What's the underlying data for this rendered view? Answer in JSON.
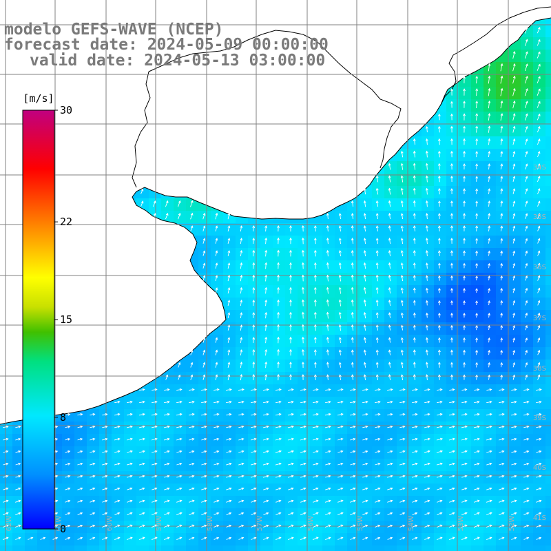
{
  "header": {
    "model": "modelo GEFS-WAVE (NCEP)",
    "forecast_date": "forecast date: 2024-05-09 00:00:00",
    "valid_date": "valid date: 2024-05-13 03:00:00"
  },
  "colorbar": {
    "unit": "[m/s]",
    "ticks": [
      "30",
      "22",
      "15",
      "8",
      "0"
    ],
    "tick_values": [
      30,
      22,
      15,
      8,
      0
    ],
    "range": [
      0,
      30
    ]
  },
  "map": {
    "lat_labels": [
      "34S",
      "35S",
      "36S",
      "37S",
      "38S",
      "39S",
      "40S",
      "41S"
    ],
    "lon_labels": [
      "62W",
      "61W",
      "60W",
      "59W",
      "58W",
      "57W",
      "56W",
      "55W",
      "54W",
      "53W",
      "52W"
    ],
    "colors": {
      "land": "#ffffff",
      "coast": "#000000",
      "grid": "#808080",
      "arrow": "#ffffff"
    }
  }
}
